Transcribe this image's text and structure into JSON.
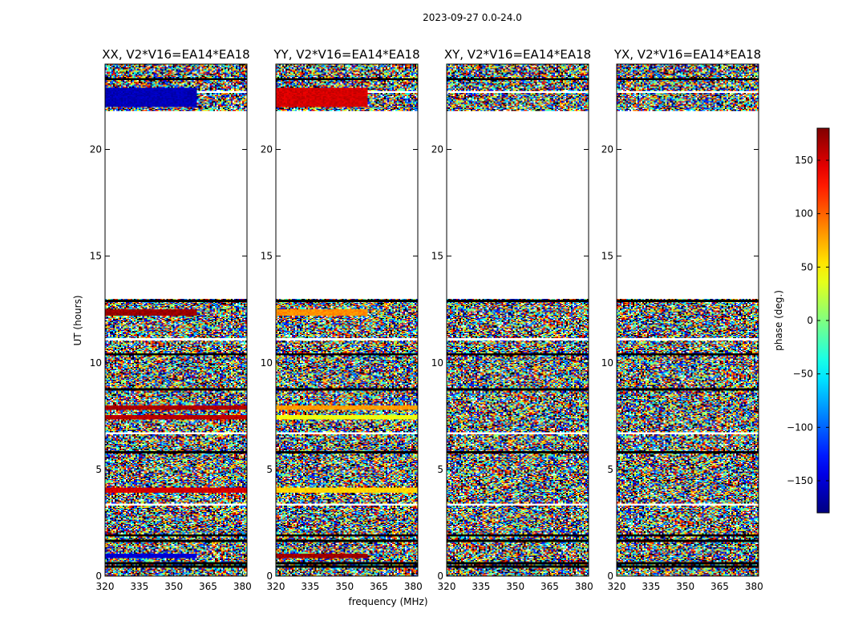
{
  "figure_title": "2023-09-27 0.0-24.0",
  "colorbar": {
    "label": "phase (deg.)",
    "ticks": [
      150,
      100,
      50,
      0,
      -50,
      -100,
      -150
    ],
    "tick_labels": [
      "150",
      "100",
      "50",
      "0",
      "−50",
      "−100",
      "−150"
    ],
    "range": [
      -180,
      180
    ],
    "colormap": "jet"
  },
  "chart_data": {
    "type": "heatmap",
    "xlabel": "frequency (MHz)",
    "ylabel": "UT (hours)",
    "xlim": [
      320,
      382
    ],
    "ylim": [
      0,
      24
    ],
    "xticks": [
      320,
      335,
      350,
      365,
      380
    ],
    "yticks": [
      0,
      5,
      10,
      15,
      20
    ],
    "value_label": "phase (deg.)",
    "value_range": [
      -180,
      180
    ],
    "data_gap_hours": [
      13.0,
      21.8
    ],
    "panels": [
      {
        "title": "XX, V2*V16=EA14*EA18",
        "coherent_bands": [
          {
            "ut_start": 0.85,
            "ut_end": 1.05,
            "phase_deg": -150,
            "freq_start": 320,
            "freq_end": 360
          },
          {
            "ut_start": 3.9,
            "ut_end": 4.15,
            "phase_deg": 150,
            "freq_start": 320,
            "freq_end": 382
          },
          {
            "ut_start": 7.35,
            "ut_end": 7.55,
            "phase_deg": 160,
            "freq_start": 320,
            "freq_end": 382
          },
          {
            "ut_start": 7.8,
            "ut_end": 8.0,
            "phase_deg": 165,
            "freq_start": 320,
            "freq_end": 382
          },
          {
            "ut_start": 12.2,
            "ut_end": 12.5,
            "phase_deg": 170,
            "freq_start": 320,
            "freq_end": 360
          },
          {
            "ut_start": 22.0,
            "ut_end": 22.9,
            "phase_deg": -160,
            "freq_start": 320,
            "freq_end": 360
          }
        ]
      },
      {
        "title": "YY, V2*V16=EA14*EA18",
        "coherent_bands": [
          {
            "ut_start": 0.85,
            "ut_end": 1.05,
            "phase_deg": 170,
            "freq_start": 320,
            "freq_end": 360
          },
          {
            "ut_start": 3.9,
            "ut_end": 4.15,
            "phase_deg": 60,
            "freq_start": 320,
            "freq_end": 382
          },
          {
            "ut_start": 7.35,
            "ut_end": 7.55,
            "phase_deg": 40,
            "freq_start": 320,
            "freq_end": 382
          },
          {
            "ut_start": 7.8,
            "ut_end": 8.0,
            "phase_deg": 80,
            "freq_start": 320,
            "freq_end": 382
          },
          {
            "ut_start": 12.2,
            "ut_end": 12.5,
            "phase_deg": 85,
            "freq_start": 320,
            "freq_end": 360
          },
          {
            "ut_start": 22.0,
            "ut_end": 22.9,
            "phase_deg": 150,
            "freq_start": 320,
            "freq_end": 360
          }
        ]
      },
      {
        "title": "XY, V2*V16=EA14*EA18",
        "coherent_bands": []
      },
      {
        "title": "YX, V2*V16=EA14*EA18",
        "coherent_bands": []
      }
    ]
  }
}
